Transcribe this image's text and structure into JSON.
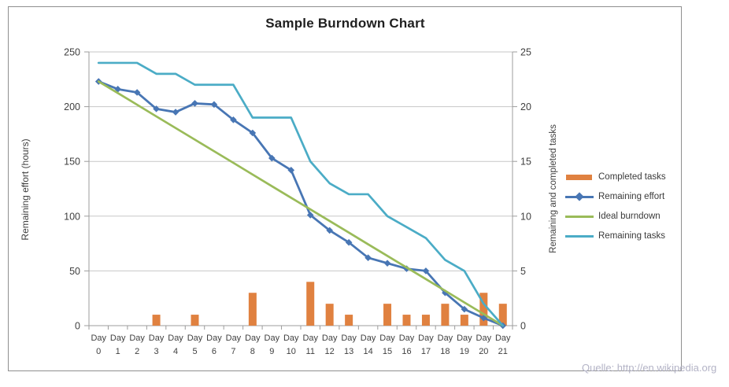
{
  "title": "Sample Burndown Chart",
  "source": "Quelle: http://en.wikipedia.org",
  "axes": {
    "left_title": "Remaining effort (hours)",
    "right_title": "Remaining and completed tasks",
    "left_ticks": [
      250,
      200,
      150,
      100,
      50,
      0
    ],
    "right_ticks": [
      25,
      20,
      15,
      10,
      5,
      0
    ]
  },
  "legend": [
    {
      "label": "Completed tasks",
      "type": "bar",
      "color": "#E08140"
    },
    {
      "label": "Remaining effort",
      "type": "line-diamond",
      "color": "#4876B4"
    },
    {
      "label": "Ideal burndown",
      "type": "line",
      "color": "#9ABB59"
    },
    {
      "label": "Remaining tasks",
      "type": "line",
      "color": "#4BACC6"
    }
  ],
  "colors": {
    "bar_orange": "#E08140",
    "effort_blue": "#4876B4",
    "ideal_green": "#9ABB59",
    "tasks_teal": "#4BACC6",
    "gridline": "#c7c7c7",
    "axis_line": "#9c9c9c",
    "tick_text": "#3f3f3f"
  },
  "chart_data": {
    "type": "bar",
    "subtype": "combo-bar-and-lines",
    "title": "Sample Burndown Chart",
    "categories": [
      "Day 0",
      "Day 1",
      "Day 2",
      "Day 3",
      "Day 4",
      "Day 5",
      "Day 6",
      "Day 7",
      "Day 8",
      "Day 9",
      "Day 10",
      "Day 11",
      "Day 12",
      "Day 13",
      "Day 14",
      "Day 15",
      "Day 16",
      "Day 17",
      "Day 18",
      "Day 19",
      "Day 20",
      "Day 21"
    ],
    "series": [
      {
        "name": "Completed tasks",
        "type": "bar",
        "axis": "right",
        "color": "#E08140",
        "values": [
          0,
          0,
          0,
          1,
          0,
          1,
          0,
          0,
          3,
          0,
          0,
          4,
          2,
          1,
          0,
          2,
          1,
          1,
          2,
          1,
          3,
          2
        ]
      },
      {
        "name": "Remaining effort",
        "type": "line",
        "marker": "diamond",
        "axis": "left",
        "color": "#4876B4",
        "values": [
          223,
          216,
          213,
          198,
          195,
          203,
          202,
          188,
          176,
          153,
          142,
          101,
          87,
          76,
          62,
          57,
          52,
          50,
          30,
          15,
          7,
          0
        ]
      },
      {
        "name": "Ideal burndown",
        "type": "line",
        "axis": "left",
        "color": "#9ABB59",
        "values": [
          223,
          212.4,
          201.8,
          191.1,
          180.5,
          169.9,
          159.3,
          148.7,
          138.0,
          127.4,
          116.8,
          106.2,
          95.6,
          85.0,
          74.3,
          63.7,
          53.1,
          42.5,
          31.9,
          21.2,
          10.6,
          0
        ]
      },
      {
        "name": "Remaining tasks",
        "type": "line",
        "axis": "right",
        "color": "#4BACC6",
        "values": [
          24,
          24,
          24,
          23,
          23,
          22,
          22,
          22,
          19,
          19,
          19,
          15,
          13,
          12,
          12,
          10,
          9,
          8,
          6,
          5,
          2,
          0
        ]
      }
    ],
    "left_axis": {
      "label": "Remaining effort (hours)",
      "min": 0,
      "max": 250,
      "step": 50
    },
    "right_axis": {
      "label": "Remaining and completed tasks",
      "min": 0,
      "max": 25,
      "step": 5
    },
    "grid": true,
    "legend_position": "right"
  }
}
